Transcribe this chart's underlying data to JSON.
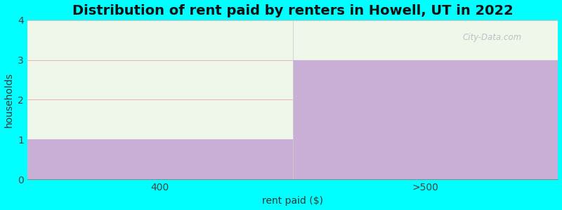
{
  "title": "Distribution of rent paid by renters in Howell, UT in 2022",
  "categories": [
    "400",
    ">500"
  ],
  "values": [
    1,
    3
  ],
  "bar_color": "#c9aed6",
  "green_color": "#eef7ea",
  "background_color": "#00ffff",
  "plot_bg_color": "#ffffff",
  "xlabel": "rent paid ($)",
  "ylabel": "households",
  "ylim": [
    0,
    4
  ],
  "yticks": [
    0,
    1,
    2,
    3,
    4
  ],
  "title_fontsize": 14,
  "axis_label_fontsize": 10,
  "tick_fontsize": 10,
  "watermark_text": "City-Data.com",
  "grid_color": "#f0b8b8",
  "spine_color": "#888888"
}
